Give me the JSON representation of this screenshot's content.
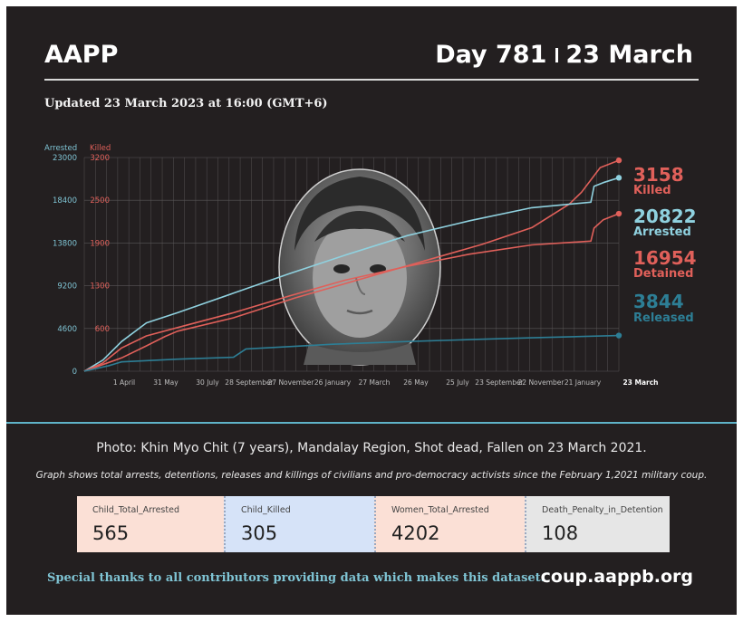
{
  "header": {
    "org": "AAPP",
    "day": "Day 781",
    "date": "23 March",
    "updated": "Updated 23 March 2023 at 16:00 (GMT+6)"
  },
  "chart_data": {
    "type": "line",
    "y_axes": [
      {
        "label": "Arrested",
        "ticks": [
          0,
          4600,
          9200,
          13800,
          18400,
          23000
        ],
        "tick_labels": [
          "0",
          "4600",
          "9200",
          "13800",
          "18400",
          "23000"
        ],
        "color": "#7fc4d4"
      },
      {
        "label": "Killed",
        "ticks": [
          600,
          1300,
          1900,
          2500,
          3200
        ],
        "tick_labels": [
          "600",
          "1300",
          "1900",
          "2500",
          "3200"
        ],
        "color": "#e0605a"
      }
    ],
    "x_tick_labels": [
      "1 April",
      "31 May",
      "30 July",
      "28 September",
      "27 November",
      "26 January",
      "27 March",
      "26 May",
      "25 July",
      "23 September",
      "22 November",
      "21 January",
      "23 March"
    ],
    "series": [
      {
        "name": "Killed",
        "color": "#e0605a",
        "final": 3158,
        "final_label": "3158",
        "points": [
          [
            0,
            0
          ],
          [
            60,
            200
          ],
          [
            100,
            380
          ],
          [
            130,
            520
          ],
          [
            150,
            600
          ],
          [
            240,
            800
          ],
          [
            340,
            1100
          ],
          [
            430,
            1340
          ],
          [
            520,
            1580
          ],
          [
            640,
            1900
          ],
          [
            720,
            2150
          ],
          [
            780,
            2500
          ],
          [
            800,
            2680
          ],
          [
            830,
            3050
          ],
          [
            860,
            3158
          ]
        ]
      },
      {
        "name": "Arrested",
        "color": "#8fd1df",
        "final": 20822,
        "final_label": "20822",
        "points": [
          [
            0,
            0
          ],
          [
            30,
            1200
          ],
          [
            60,
            3200
          ],
          [
            100,
            5200
          ],
          [
            150,
            6300
          ],
          [
            240,
            8400
          ],
          [
            330,
            10500
          ],
          [
            420,
            12500
          ],
          [
            520,
            14600
          ],
          [
            620,
            16200
          ],
          [
            720,
            17600
          ],
          [
            815,
            18200
          ],
          [
            820,
            19900
          ],
          [
            835,
            20300
          ],
          [
            860,
            20822
          ]
        ]
      },
      {
        "name": "Detained",
        "color": "#e0605a",
        "final": 16954,
        "final_label": "16954",
        "points": [
          [
            0,
            0
          ],
          [
            30,
            900
          ],
          [
            60,
            2500
          ],
          [
            100,
            3800
          ],
          [
            150,
            4700
          ],
          [
            240,
            6300
          ],
          [
            330,
            8100
          ],
          [
            420,
            9800
          ],
          [
            520,
            11300
          ],
          [
            620,
            12600
          ],
          [
            720,
            13600
          ],
          [
            815,
            14000
          ],
          [
            820,
            15400
          ],
          [
            835,
            16300
          ],
          [
            860,
            16954
          ]
        ]
      },
      {
        "name": "Released",
        "color": "#2d7e95",
        "final": 3844,
        "final_label": "3844",
        "points": [
          [
            0,
            0
          ],
          [
            40,
            600
          ],
          [
            60,
            1000
          ],
          [
            150,
            1300
          ],
          [
            240,
            1500
          ],
          [
            260,
            2400
          ],
          [
            400,
            2900
          ],
          [
            520,
            3200
          ],
          [
            620,
            3400
          ],
          [
            720,
            3600
          ],
          [
            860,
            3844
          ]
        ]
      }
    ]
  },
  "caption": "Photo: Khin Myo Chit (7 years), Mandalay Region,  Shot dead, Fallen on 23 March 2021.",
  "note": "Graph shows total arrests, detentions, releases and killings of civilians and pro-democracy activists since the February 1,2021 military coup.",
  "stats": [
    {
      "label": "Child_Total_Arrested",
      "value": "565",
      "bg": "#fbe0d6"
    },
    {
      "label": "Child_Killed",
      "value": "305",
      "bg": "#d6e3f8"
    },
    {
      "label": "Women_Total_Arrested",
      "value": "4202",
      "bg": "#fbe0d6"
    },
    {
      "label": "Death_Penalty_in_Detention",
      "value": "108",
      "bg": "#e6e6e6"
    }
  ],
  "footer": {
    "thanks": "Special thanks to all contributors providing data which makes this dataset.",
    "site": "coup.aappb.org"
  }
}
